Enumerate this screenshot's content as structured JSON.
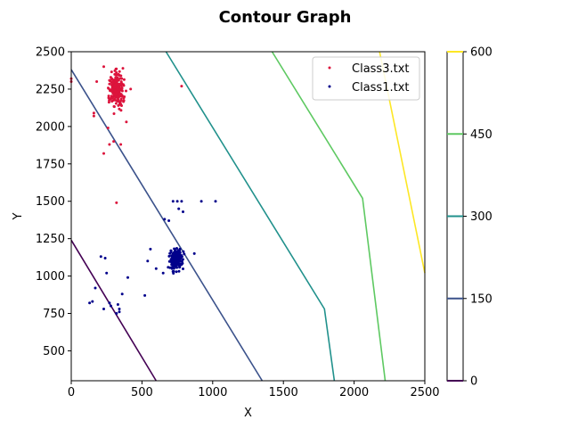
{
  "chart_data": {
    "type": "scatter",
    "title": "Contour Graph",
    "xlabel": "X",
    "ylabel": "Y",
    "xlim": [
      0,
      2500
    ],
    "ylim": [
      300,
      2500
    ],
    "xticks": [
      "0",
      "500",
      "1000",
      "1500",
      "2000",
      "2500"
    ],
    "yticks": [
      "500",
      "750",
      "1000",
      "1250",
      "1500",
      "1750",
      "2000",
      "2250",
      "2500"
    ],
    "legend_position": "top-right",
    "series": [
      {
        "name": "Class3.txt",
        "color": "#dc143c",
        "cluster": {
          "center": [
            320,
            2250
          ],
          "spread": [
            40,
            90
          ],
          "count": 220
        },
        "points": [
          [
            0,
            2320
          ],
          [
            0,
            2300
          ],
          [
            160,
            2070
          ],
          [
            160,
            2090
          ],
          [
            230,
            1820
          ],
          [
            270,
            1880
          ],
          [
            300,
            1900
          ],
          [
            320,
            1490
          ],
          [
            350,
            1880
          ],
          [
            780,
            2270
          ],
          [
            420,
            2250
          ],
          [
            390,
            2030
          ],
          [
            180,
            2300
          ],
          [
            230,
            2400
          ],
          [
            260,
            1990
          ]
        ]
      },
      {
        "name": "Class1.txt",
        "color": "#00008b",
        "cluster": {
          "center": [
            740,
            1110
          ],
          "spread": [
            35,
            55
          ],
          "count": 200
        },
        "points": [
          [
            130,
            820
          ],
          [
            150,
            830
          ],
          [
            170,
            920
          ],
          [
            210,
            1130
          ],
          [
            240,
            1120
          ],
          [
            250,
            1020
          ],
          [
            230,
            780
          ],
          [
            270,
            820
          ],
          [
            280,
            800
          ],
          [
            330,
            810
          ],
          [
            340,
            780
          ],
          [
            340,
            760
          ],
          [
            320,
            750
          ],
          [
            360,
            880
          ],
          [
            400,
            990
          ],
          [
            520,
            870
          ],
          [
            540,
            1100
          ],
          [
            560,
            1180
          ],
          [
            600,
            1050
          ],
          [
            650,
            1020
          ],
          [
            660,
            1380
          ],
          [
            690,
            1370
          ],
          [
            720,
            1500
          ],
          [
            750,
            1500
          ],
          [
            780,
            1500
          ],
          [
            760,
            1450
          ],
          [
            790,
            1430
          ],
          [
            870,
            1150
          ],
          [
            920,
            1500
          ],
          [
            1020,
            1500
          ]
        ]
      }
    ],
    "colorbar": {
      "ticks": [
        "0",
        "150",
        "300",
        "450",
        "600"
      ],
      "tick_values": [
        0,
        150,
        300,
        450,
        600
      ],
      "range": [
        0,
        600
      ],
      "colors": [
        "#440154",
        "#3b528b",
        "#21918c",
        "#5ec962",
        "#fde725"
      ]
    },
    "contours": [
      {
        "level": 0,
        "color": "#440154",
        "points": [
          [
            0,
            1240
          ],
          [
            600,
            300
          ]
        ]
      },
      {
        "level": 150,
        "color": "#3b528b",
        "points": [
          [
            0,
            2380
          ],
          [
            1350,
            300
          ]
        ]
      },
      {
        "level": 300,
        "color": "#21918c",
        "points": [
          [
            670,
            2500
          ],
          [
            1790,
            780
          ],
          [
            1860,
            300
          ]
        ]
      },
      {
        "level": 450,
        "color": "#5ec962",
        "points": [
          [
            1420,
            2500
          ],
          [
            2060,
            1520
          ],
          [
            2220,
            300
          ]
        ]
      },
      {
        "level": 600,
        "color": "#fde725",
        "points": [
          [
            2180,
            2500
          ],
          [
            2500,
            1020
          ]
        ]
      }
    ]
  }
}
